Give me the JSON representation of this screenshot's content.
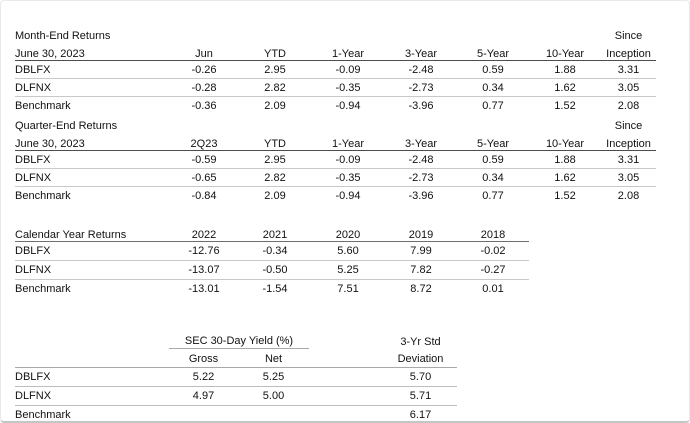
{
  "month_end": {
    "title": "Month-End Returns",
    "date": "June 30, 2023",
    "since": "Since",
    "columns": [
      "Jun",
      "YTD",
      "1-Year",
      "3-Year",
      "5-Year",
      "10-Year",
      "Inception"
    ],
    "rows": [
      {
        "label": "DBLFX",
        "values": [
          "-0.26",
          "2.95",
          "-0.09",
          "-2.48",
          "0.59",
          "1.88",
          "3.31"
        ]
      },
      {
        "label": "DLFNX",
        "values": [
          "-0.28",
          "2.82",
          "-0.35",
          "-2.73",
          "0.34",
          "1.62",
          "3.05"
        ]
      },
      {
        "label": "Benchmark",
        "values": [
          "-0.36",
          "2.09",
          "-0.94",
          "-3.96",
          "0.77",
          "1.52",
          "2.08"
        ]
      }
    ]
  },
  "quarter_end": {
    "title": "Quarter-End Returns",
    "date": "June 30, 2023",
    "since": "Since",
    "columns": [
      "2Q23",
      "YTD",
      "1-Year",
      "3-Year",
      "5-Year",
      "10-Year",
      "Inception"
    ],
    "rows": [
      {
        "label": "DBLFX",
        "values": [
          "-0.59",
          "2.95",
          "-0.09",
          "-2.48",
          "0.59",
          "1.88",
          "3.31"
        ]
      },
      {
        "label": "DLFNX",
        "values": [
          "-0.65",
          "2.82",
          "-0.35",
          "-2.73",
          "0.34",
          "1.62",
          "3.05"
        ]
      },
      {
        "label": "Benchmark",
        "values": [
          "-0.84",
          "2.09",
          "-0.94",
          "-3.96",
          "0.77",
          "1.52",
          "2.08"
        ]
      }
    ]
  },
  "calendar_year": {
    "title": "Calendar Year Returns",
    "columns": [
      "2022",
      "2021",
      "2020",
      "2019",
      "2018"
    ],
    "rows": [
      {
        "label": "DBLFX",
        "values": [
          "-12.76",
          "-0.34",
          "5.60",
          "7.99",
          "-0.02"
        ]
      },
      {
        "label": "DLFNX",
        "values": [
          "-13.07",
          "-0.50",
          "5.25",
          "7.82",
          "-0.27"
        ]
      },
      {
        "label": "Benchmark",
        "values": [
          "-13.01",
          "-1.54",
          "7.51",
          "8.72",
          "0.01"
        ]
      }
    ]
  },
  "yield_table": {
    "group_header": "SEC 30-Day Yield (%)",
    "std_header_line1": "3-Yr Std",
    "std_header_line2": "Deviation",
    "gross_label": "Gross",
    "net_label": "Net",
    "rows": [
      {
        "label": "DBLFX",
        "gross": "5.22",
        "net": "5.25",
        "std": "5.70"
      },
      {
        "label": "DLFNX",
        "gross": "4.97",
        "net": "5.00",
        "std": "5.71"
      },
      {
        "label": "Benchmark",
        "gross": "",
        "net": "",
        "std": "6.17"
      }
    ]
  }
}
